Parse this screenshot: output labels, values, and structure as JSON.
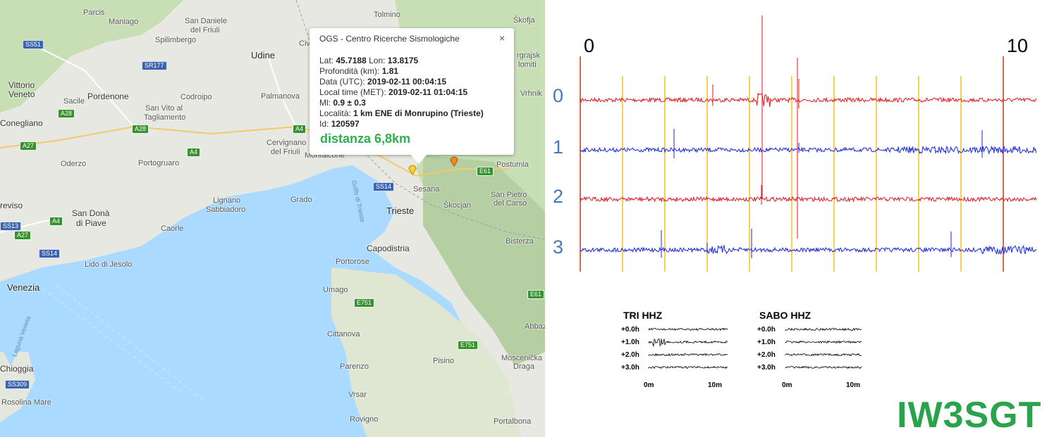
{
  "map": {
    "labels": {
      "parcis": "Parcis",
      "maniago": "Maniago",
      "san_daniele": "San Daniele",
      "del_friuli": "del Friuli",
      "spilimbergo": "Spilimbergo",
      "tolmino": "Tolmino",
      "skofja": "Škofja",
      "udine": "Udine",
      "civ": "Civ",
      "vittorio": "Vittorio",
      "veneto": "Veneto",
      "pordenone": "Pordenone",
      "sacile": "Sacile",
      "codroipo": "Codroipo",
      "palmanova": "Palmanova",
      "san_vito": "San Vito al",
      "tagliamento": "Tagliamento",
      "conegliano": "Conegliano",
      "cervignano": "Cervignano",
      "del_friuli2": "del Friuli",
      "oderzo": "Oderzo",
      "portogruaro": "Portogruaro",
      "monfalcone": "Monfalcone",
      "postumia": "Postumia",
      "sesana": "Sesana",
      "grado": "Grado",
      "lignano": "Lignano",
      "sabbiadoro": "Sabbiadoro",
      "treviso": "reviso",
      "san_dona": "San Donà",
      "di_piave": "di Piave",
      "trieste": "Trieste",
      "skocjan": "Škocjan",
      "san_pietro": "San Pietro",
      "del_carso": "del Carso",
      "caorle": "Caorle",
      "golfo": "Golfo di Trieste",
      "capodistria": "Capodistria",
      "portorose": "Portorose",
      "bisterza": "Bisterza",
      "lido": "Lido di Jesolo",
      "venezia": "Venezia",
      "umago": "Umago",
      "cittanova": "Cittanova",
      "abbaz": "Abbaz",
      "laguna": "Laguna Veneta",
      "pisino": "Pisino",
      "moscenicka": "Moscenička",
      "draga": "Draga",
      "parenzo": "Parenzo",
      "chioggia": "Chioggia",
      "vrsar": "Vrsar",
      "rosolina": "Rosolina Mare",
      "rovigno": "Rovigno",
      "portalbona": "Portalbona",
      "vrhnik": "Vrhnik",
      "rgrajsk": "rgrajsk",
      "lomiti": "lomiti"
    },
    "roads": {
      "ss51": "SS51",
      "sr177": "SR177",
      "a28": "A28",
      "a28b": "A28",
      "a27": "A27",
      "a4a": "A4",
      "a4b": "A4",
      "a4c": "A4",
      "ss13": "SS13",
      "a27b": "A27",
      "ss14": "SS14",
      "ss14b": "SS14",
      "e61": "E61",
      "e61b": "E61",
      "e751": "E751",
      "e751b": "E751",
      "ss309": "SS309"
    },
    "colors": {
      "sea": "#aadaff",
      "land": "#e8e8e2",
      "green": "#c8dfb6",
      "hills": "#b5cfa3"
    }
  },
  "popup": {
    "title": "OGS - Centro Ricerche Sismologiche",
    "close": "×",
    "lat_label": "Lat:",
    "lat": "45.7188",
    "lon_label": "Lon:",
    "lon": "13.8175",
    "depth_label": "Profondità (km):",
    "depth": "1.81",
    "date_label": "Data (UTC):",
    "date": "2019-02-11 00:04:15",
    "local_label": "Local time (MET):",
    "local": "2019-02-11 01:04:15",
    "ml_label": "Ml:",
    "ml": "0.9 ± 0.3",
    "loc_label": "Località:",
    "loc": "1 km ENE di Monrupino (Trieste)",
    "id_label": "Id:",
    "id": "120597",
    "distance": "distanza 6,8km"
  },
  "seismogram": {
    "scale_start": "0",
    "scale_end": "10",
    "traces": [
      {
        "label": "0",
        "color": "#e8161a"
      },
      {
        "label": "1",
        "color": "#1726e0"
      },
      {
        "label": "2",
        "color": "#e8161a"
      },
      {
        "label": "3",
        "color": "#1726e0"
      }
    ],
    "minute_line_color": "#f4c21a",
    "end_line_color": "#c43a1a"
  },
  "thumbnails": [
    {
      "title": "TRI HHZ",
      "rows": [
        "+0.0h",
        "+1.0h",
        "+2.0h",
        "+3.0h"
      ],
      "axis_start": "0m",
      "axis_end": "10m"
    },
    {
      "title": "SABO HHZ",
      "rows": [
        "+0.0h",
        "+1.0h",
        "+2.0h",
        "+3.0h"
      ],
      "axis_start": "0m",
      "axis_end": "10m"
    }
  ],
  "signature": "IW3SGT"
}
